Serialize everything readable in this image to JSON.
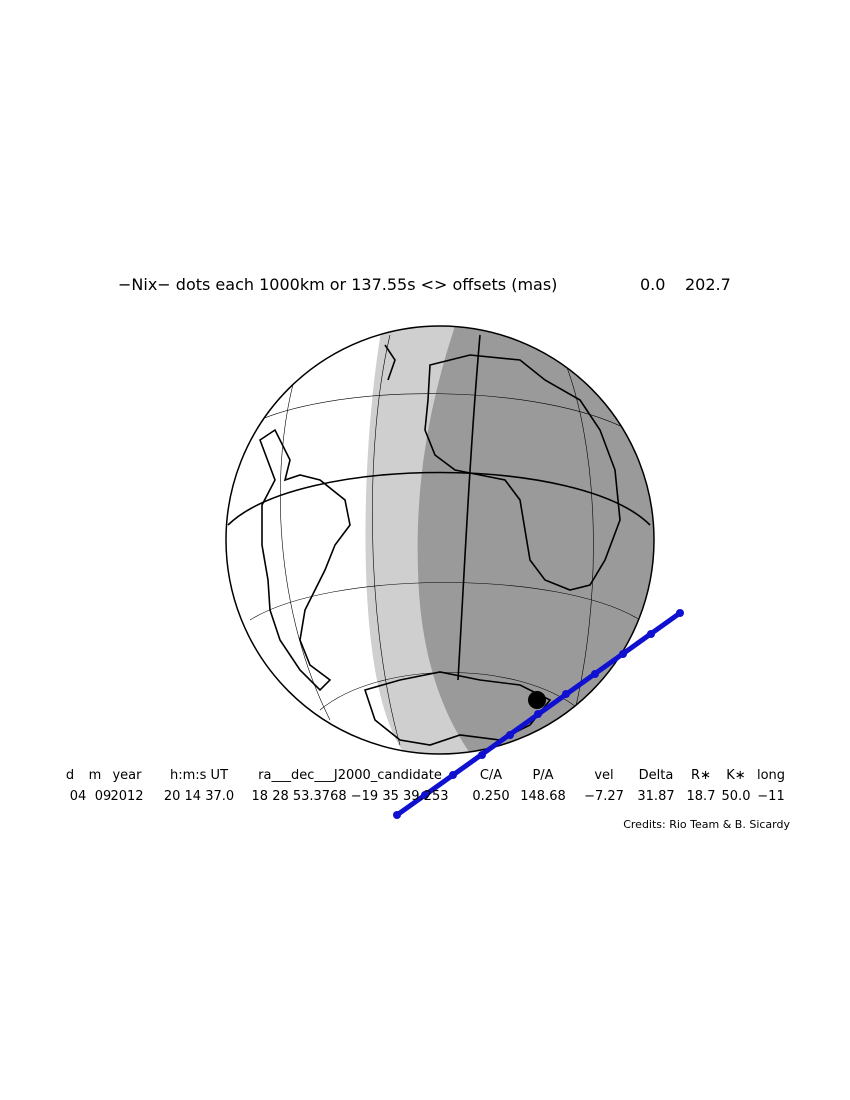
{
  "header": {
    "title": "−Nix− dots each 1000km or 137.55s <> offsets (mas)",
    "offset_x": "0.0",
    "offset_y": "202.7"
  },
  "table": {
    "columns": [
      "d",
      "m",
      "year",
      "h:m:s UT",
      "ra___dec___J2000_candidate",
      "C/A",
      "P/A",
      "vel",
      "Delta",
      "R∗",
      "K∗",
      "long"
    ],
    "row": [
      "04",
      "09",
      "2012",
      "20 14 37.0",
      "18 28 53.3768 −19 35 39.253",
      "0.250",
      "148.68",
      "−7.27",
      "31.87",
      "18.7",
      "50.0",
      "−11"
    ]
  },
  "credits": "Credits: Rio Team & B. Sicardy"
}
